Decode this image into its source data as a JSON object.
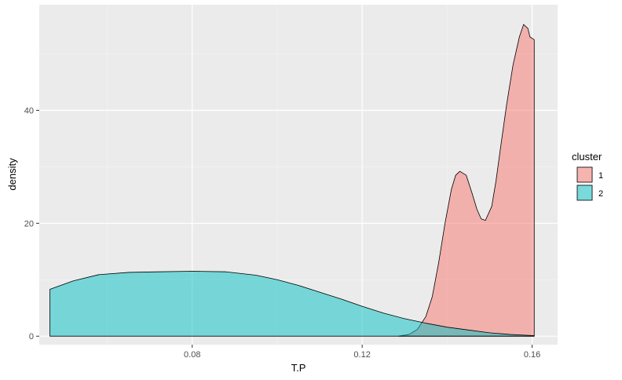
{
  "chart_data": {
    "type": "area",
    "title": "",
    "xlabel": "T.P",
    "ylabel": "density",
    "xlim": [
      0.044,
      0.166
    ],
    "ylim": [
      -1.5,
      58.7
    ],
    "x_ticks": [
      0.08,
      0.12,
      0.16
    ],
    "x_tick_labels": [
      "0.08",
      "0.12",
      "0.16"
    ],
    "x_minor_ticks": [
      0.06,
      0.1,
      0.14
    ],
    "y_ticks": [
      0,
      20,
      40
    ],
    "y_tick_labels": [
      "0",
      "20",
      "40"
    ],
    "y_minor_ticks": [
      10,
      30,
      50
    ],
    "grid": true,
    "legend": {
      "title": "cluster",
      "position": "right",
      "entries": [
        "1",
        "2"
      ]
    },
    "series": [
      {
        "name": "1",
        "color": "#F8766D",
        "x": [
          0.1285,
          0.131,
          0.133,
          0.135,
          0.1365,
          0.138,
          0.1395,
          0.141,
          0.142,
          0.143,
          0.1445,
          0.146,
          0.147,
          0.148,
          0.149,
          0.1505,
          0.1515,
          0.1525,
          0.154,
          0.1555,
          0.157,
          0.158,
          0.159,
          0.1595,
          0.1605,
          0.1605
        ],
        "y": [
          0,
          0.3,
          1.2,
          3.5,
          7,
          13,
          20,
          26,
          28.5,
          29.2,
          28.5,
          25,
          22.5,
          20.8,
          20.5,
          23,
          27.5,
          33,
          41,
          48,
          53,
          55.2,
          54.5,
          53,
          52.5,
          0
        ]
      },
      {
        "name": "2",
        "color": "#00BFC4",
        "x": [
          0.0465,
          0.0465,
          0.052,
          0.058,
          0.065,
          0.072,
          0.08,
          0.088,
          0.095,
          0.1,
          0.105,
          0.11,
          0.115,
          0.12,
          0.125,
          0.13,
          0.135,
          0.14,
          0.145,
          0.15,
          0.155,
          0.1605,
          0.1605
        ],
        "y": [
          0,
          8.3,
          9.8,
          10.9,
          11.3,
          11.4,
          11.5,
          11.4,
          10.8,
          10,
          9,
          7.8,
          6.6,
          5.3,
          4.1,
          3.1,
          2.3,
          1.6,
          1.1,
          0.6,
          0.3,
          0.1,
          0
        ]
      }
    ]
  }
}
